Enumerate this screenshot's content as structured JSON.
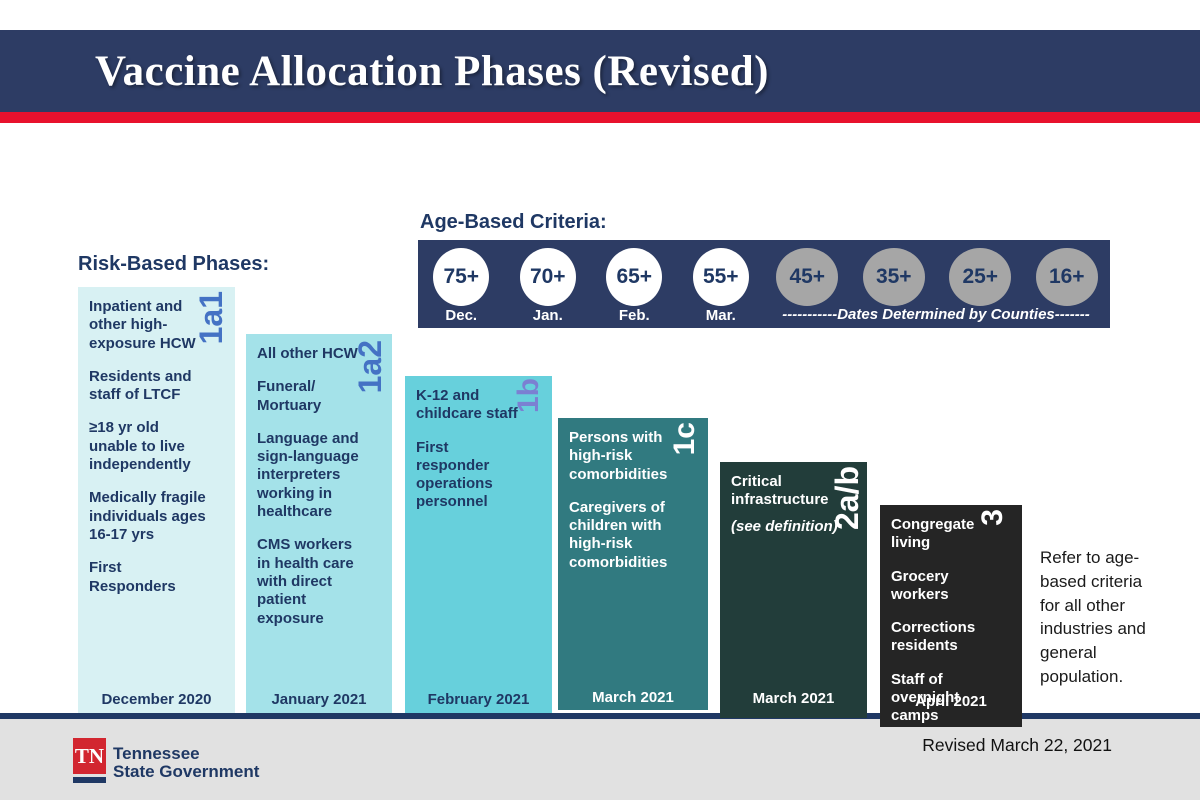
{
  "header": {
    "title": "Vaccine Allocation Phases (Revised)"
  },
  "labels": {
    "risk_based": "Risk-Based Phases:",
    "age_based": "Age-Based Criteria:"
  },
  "age_criteria": {
    "dates_note": "-----------Dates Determined by Counties-------",
    "groups": [
      {
        "age": "75+",
        "month": "Dec.",
        "style": "white"
      },
      {
        "age": "70+",
        "month": "Jan.",
        "style": "white"
      },
      {
        "age": "65+",
        "month": "Feb.",
        "style": "white"
      },
      {
        "age": "55+",
        "month": "Mar.",
        "style": "white"
      },
      {
        "age": "45+",
        "month": "",
        "style": "gray"
      },
      {
        "age": "35+",
        "month": "",
        "style": "gray"
      },
      {
        "age": "25+",
        "month": "",
        "style": "gray"
      },
      {
        "age": "16+",
        "month": "",
        "style": "gray"
      }
    ]
  },
  "phases": [
    {
      "id": "1a1",
      "date": "December 2020",
      "items": [
        "Inpatient and other high-exposure HCW",
        "Residents and staff of LTCF",
        "≥18 yr old unable to live independently",
        "Medically fragile individuals ages 16-17 yrs",
        "First Responders"
      ],
      "colors": {
        "bg": "#d8f1f3",
        "text": "#1f3864",
        "label": "#4472c4"
      }
    },
    {
      "id": "1a2",
      "date": "January 2021",
      "items": [
        "All other HCW",
        "Funeral/ Mortuary",
        "Language and sign-language interpreters working in healthcare",
        "CMS  workers in health care with direct patient exposure"
      ],
      "colors": {
        "bg": "#a4e2e9",
        "text": "#1f3864",
        "label": "#4472c4"
      }
    },
    {
      "id": "1b",
      "date": "February 2021",
      "items": [
        "K-12 and childcare staff",
        "First responder operations personnel"
      ],
      "colors": {
        "bg": "#67d0dc",
        "text": "#1f3864",
        "label": "#7b80d2"
      }
    },
    {
      "id": "1c",
      "date": "March 2021",
      "items": [
        "Persons with high-risk comorbidities",
        "Caregivers of children with high-risk comorbidities"
      ],
      "colors": {
        "bg": "#317a80",
        "text": "#ffffff",
        "label": "#ffffff"
      }
    },
    {
      "id": "2a/b",
      "date": "March 2021",
      "items": [
        "Critical infrastructure",
        "(see definition)"
      ],
      "colors": {
        "bg": "#223d3a",
        "text": "#ffffff",
        "label": "#ffffff"
      }
    },
    {
      "id": "3",
      "date": "April 2021",
      "items": [
        "Congregate living",
        "Grocery workers",
        "Corrections residents",
        "Staff of overnight camps"
      ],
      "colors": {
        "bg": "#252525",
        "text": "#ffffff",
        "label": "#ffffff"
      }
    }
  ],
  "note": "Refer to age-based criteria for all other industries and general population.",
  "footer": {
    "logo_initials": "TN",
    "logo_line1": "Tennessee",
    "logo_line2": "State Government",
    "revised": "Revised March 22, 2021"
  }
}
